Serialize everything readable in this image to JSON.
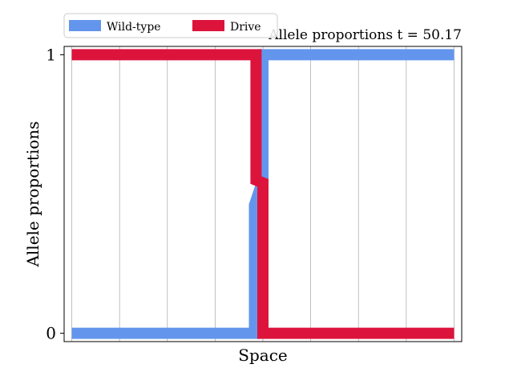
{
  "chart_data": {
    "type": "line",
    "title": "Allele proportions t = 50.17",
    "xlabel": "Space",
    "ylabel": "Allele proportions",
    "xlim": [
      -0.02,
      1.02
    ],
    "ylim": [
      -0.03,
      1.03
    ],
    "yticks": [
      0,
      1
    ],
    "ytick_labels": [
      "0",
      "1"
    ],
    "x_gridlines": [
      0.0,
      0.125,
      0.25,
      0.375,
      0.5,
      0.625,
      0.75,
      0.875,
      1.0
    ],
    "grid": "vertical",
    "legend_position": "top-left",
    "series": [
      {
        "name": "Wild-type",
        "color": "#6495ED",
        "x": [
          0.0,
          0.478,
          0.478,
          0.5,
          0.5,
          1.0
        ],
        "y": [
          0.0,
          0.0,
          0.46,
          0.55,
          1.0,
          1.0
        ]
      },
      {
        "name": "Drive",
        "color": "#DC143C",
        "x": [
          0.0,
          0.482,
          0.482,
          0.5,
          0.5,
          1.0
        ],
        "y": [
          1.0,
          1.0,
          0.55,
          0.54,
          0.0,
          0.0
        ]
      }
    ]
  }
}
